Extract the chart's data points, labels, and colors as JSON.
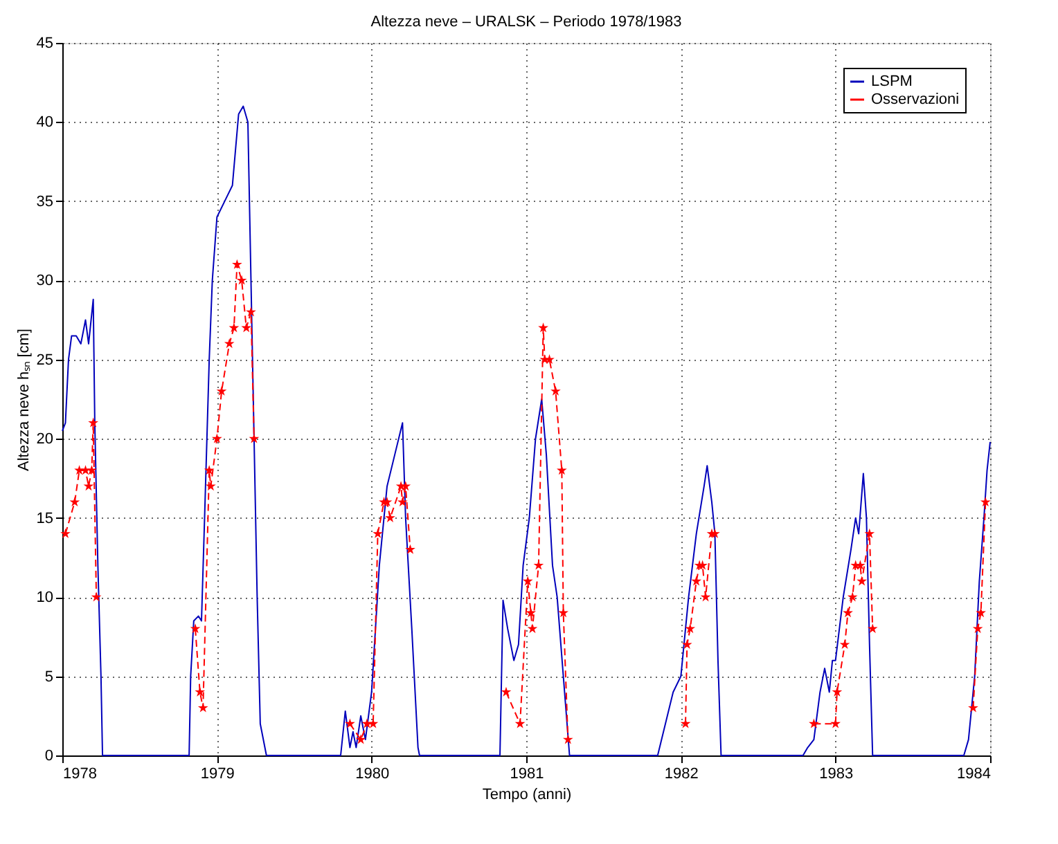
{
  "chart_data": {
    "type": "line",
    "title": "Altezza neve – URALSK – Periodo 1978/1983",
    "xlabel": "Tempo (anni)",
    "ylabel": "Altezza neve hₛₙ [cm]",
    "xlim": [
      1978,
      1984
    ],
    "xticks": [
      1978,
      1979,
      1980,
      1981,
      1982,
      1983,
      1984
    ],
    "ylim": [
      0,
      45
    ],
    "yticks": [
      0,
      5,
      10,
      15,
      20,
      25,
      30,
      35,
      40,
      45
    ],
    "grid": true,
    "legend": "top right",
    "series": [
      {
        "name": "LSPM",
        "color": "#0000bb",
        "marker": "none",
        "line_style": "solid",
        "x": [
          1978.0,
          1978.02,
          1978.04,
          1978.06,
          1978.09,
          1978.12,
          1978.15,
          1978.17,
          1978.2,
          1978.21,
          1978.23,
          1978.25,
          1978.26,
          1978.82,
          1978.83,
          1978.85,
          1978.88,
          1978.9,
          1978.92,
          1978.95,
          1978.97,
          1979.0,
          1979.05,
          1979.1,
          1979.14,
          1979.17,
          1979.2,
          1979.22,
          1979.24,
          1979.26,
          1979.28,
          1979.32,
          1979.8,
          1979.83,
          1979.86,
          1979.88,
          1979.9,
          1979.93,
          1979.96,
          1980.0,
          1980.05,
          1980.1,
          1980.15,
          1980.2,
          1980.22,
          1980.26,
          1980.3,
          1980.31,
          1980.83,
          1980.85,
          1980.88,
          1980.92,
          1980.95,
          1980.98,
          1981.02,
          1981.06,
          1981.1,
          1981.13,
          1981.17,
          1981.2,
          1981.24,
          1981.28,
          1981.85,
          1981.9,
          1981.95,
          1982.0,
          1982.05,
          1982.1,
          1982.15,
          1982.17,
          1982.2,
          1982.22,
          1982.24,
          1982.26,
          1982.79,
          1982.82,
          1982.86,
          1982.9,
          1982.93,
          1982.96,
          1982.98,
          1983.0,
          1983.05,
          1983.1,
          1983.13,
          1983.15,
          1983.18,
          1983.2,
          1983.22,
          1983.24,
          1983.83,
          1983.86,
          1983.9,
          1983.93,
          1983.96,
          1983.98,
          1984.0
        ],
        "values": [
          20.5,
          21,
          25,
          26.5,
          26.5,
          26,
          27.5,
          26,
          28.8,
          21,
          12,
          5,
          0,
          0,
          5,
          8.5,
          8.8,
          8.5,
          15,
          25,
          30,
          34,
          35,
          36,
          40.5,
          41,
          40,
          30,
          20,
          10,
          2,
          0,
          0,
          2.8,
          0.5,
          1.5,
          0.5,
          2.5,
          1,
          4,
          12,
          17,
          19,
          21,
          15,
          8,
          0.5,
          0,
          0,
          9.8,
          8,
          6,
          7,
          12,
          15,
          20,
          22.5,
          19,
          12,
          10,
          5,
          0,
          0,
          2,
          4,
          5,
          10,
          14,
          17,
          18.3,
          16,
          14,
          6,
          0,
          0,
          0.5,
          1,
          4,
          5.5,
          4,
          6,
          6,
          10,
          13,
          15,
          14,
          17.8,
          15,
          7,
          0,
          0,
          1,
          5,
          11,
          15,
          18,
          19.8
        ]
      },
      {
        "name": "Osservazioni",
        "color": "#ff0000",
        "marker": "star",
        "line_style": "dashed",
        "x": [
          1978.02,
          1978.08,
          1978.11,
          1978.15,
          1978.17,
          1978.19,
          1978.2,
          1978.22,
          1978.5,
          1978.86,
          1978.89,
          1978.91,
          1978.95,
          1978.96,
          1979.0,
          1979.03,
          1979.08,
          1979.11,
          1979.13,
          1979.16,
          1979.19,
          1979.22,
          1979.24,
          1979.5,
          1979.86,
          1979.93,
          1979.97,
          1980.01,
          1980.04,
          1980.08,
          1980.1,
          1980.12,
          1980.19,
          1980.2,
          1980.22,
          1980.25,
          1980.5,
          1980.87,
          1980.96,
          1981.01,
          1981.03,
          1981.04,
          1981.08,
          1981.11,
          1981.12,
          1981.15,
          1981.19,
          1981.23,
          1981.24,
          1981.27,
          1981.5,
          1982.03,
          1982.04,
          1982.06,
          1982.1,
          1982.12,
          1982.14,
          1982.16,
          1982.2,
          1982.22,
          1982.5,
          1982.86,
          1983.0,
          1983.01,
          1983.06,
          1983.08,
          1983.11,
          1983.13,
          1983.16,
          1983.17,
          1983.22,
          1983.24,
          1983.5,
          1983.89,
          1983.92,
          1983.94,
          1983.97
        ],
        "values": [
          14,
          16,
          18,
          18,
          17,
          18,
          21,
          10,
          null,
          8,
          4,
          3,
          18,
          17,
          20,
          23,
          26,
          27,
          31,
          30,
          27,
          28,
          20,
          null,
          2,
          1,
          2,
          2,
          14,
          16,
          16,
          15,
          17,
          16,
          17,
          13,
          null,
          4,
          2,
          11,
          9,
          8,
          12,
          27,
          25,
          25,
          23,
          18,
          9,
          1,
          null,
          2,
          7,
          8,
          11,
          12,
          12,
          10,
          14,
          14,
          null,
          2,
          2,
          4,
          7,
          9,
          10,
          12,
          12,
          11,
          14,
          8,
          null,
          3,
          8,
          9,
          16
        ]
      }
    ]
  }
}
